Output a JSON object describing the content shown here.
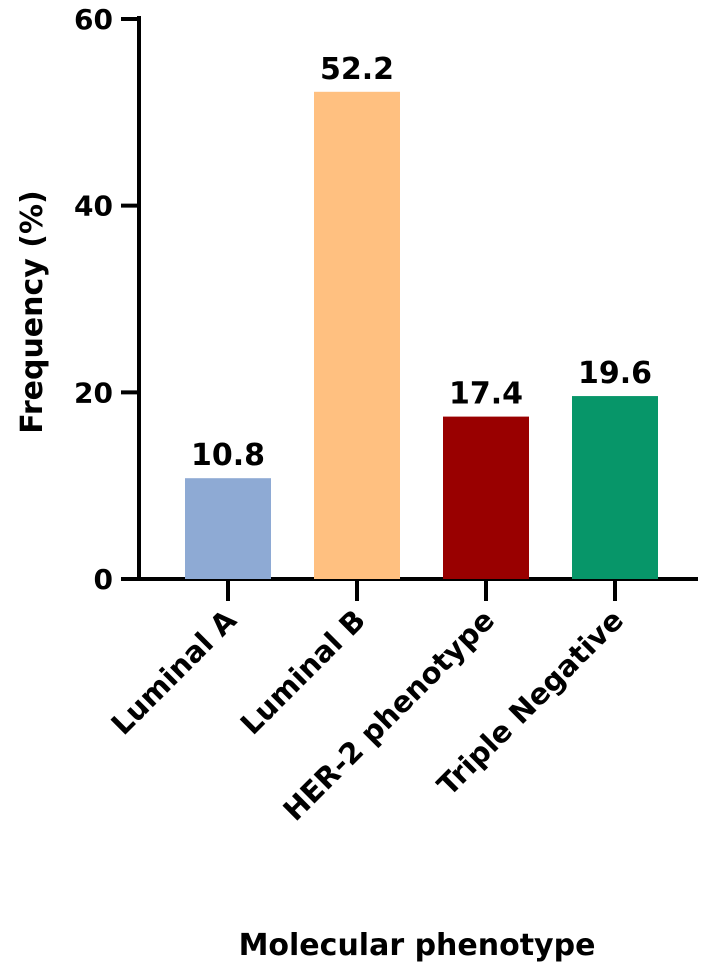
{
  "chart_data": {
    "type": "bar",
    "title": "",
    "xlabel": "Molecular phenotype",
    "ylabel": "Frequency (%)",
    "categories": [
      "Luminal A",
      "Luminal B",
      "HER-2 phenotype",
      "Triple Negative"
    ],
    "values": [
      10.8,
      52.2,
      17.4,
      19.6
    ],
    "data_labels": [
      "10.8",
      "52.2",
      "17.4",
      "19.6"
    ],
    "colors": [
      "#8EAAD4",
      "#FFC080",
      "#990000",
      "#079669"
    ],
    "ylim": [
      0,
      60
    ],
    "yticks": [
      0,
      20,
      40,
      60
    ],
    "ytick_labels": [
      "0",
      "20",
      "40",
      "60"
    ],
    "grid": false,
    "legend": "none"
  }
}
